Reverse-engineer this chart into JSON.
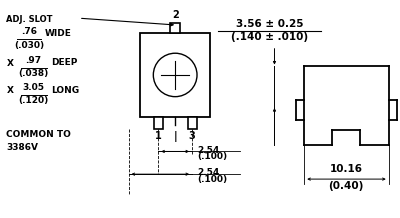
{
  "bg_color": "#ffffff",
  "line_color": "#000000",
  "text_color": "#000000",
  "fig_width": 4.0,
  "fig_height": 2.18,
  "dpi": 100,
  "labels": {
    "adj_slot": "ADJ. SLOT",
    "wide_top": ".76",
    "wide_bot": "(.030)",
    "wide_lbl": "WIDE",
    "deep_top": ".97",
    "deep_bot": "(.038)",
    "deep_lbl": "DEEP",
    "long_top": "3.05",
    "long_bot": "(.120)",
    "long_lbl": "LONG",
    "common1": "COMMON TO",
    "common2": "3386V",
    "pin2": "2",
    "pin1": "1",
    "pin3": "3",
    "dim_254_top": "2.54",
    "dim_254_bot": "(.100)",
    "dim_height_top": "3.56 ± 0.25",
    "dim_height_bot": "(.140 ± .010)",
    "dim_width_top": "10.16",
    "dim_width_bot": "(0.40)"
  }
}
